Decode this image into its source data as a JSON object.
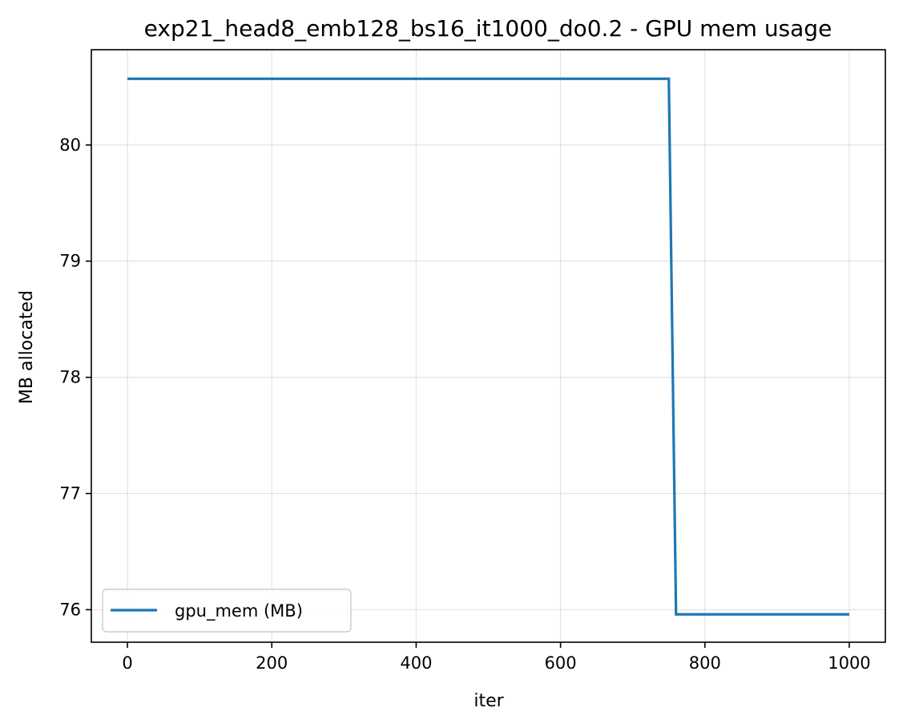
{
  "chart_data": {
    "type": "line",
    "title": "exp21_head8_emb128_bs16_it1000_do0.2 - GPU mem usage",
    "xlabel": "iter",
    "ylabel": "MB allocated",
    "xlim": [
      -50,
      1050
    ],
    "ylim": [
      75.72,
      80.82
    ],
    "xticks": [
      0,
      200,
      400,
      600,
      800,
      1000
    ],
    "xtick_labels": [
      "0",
      "200",
      "400",
      "600",
      "800",
      "1000"
    ],
    "yticks": [
      76,
      77,
      78,
      79,
      80
    ],
    "ytick_labels": [
      "76",
      "77",
      "78",
      "79",
      "80"
    ],
    "grid": true,
    "legend_position": "lower-left",
    "series": [
      {
        "name": "gpu_mem (MB)",
        "color": "#1f77b4",
        "x": [
          0,
          750,
          760,
          1000
        ],
        "y": [
          80.57,
          80.57,
          75.96,
          75.96
        ]
      }
    ]
  }
}
